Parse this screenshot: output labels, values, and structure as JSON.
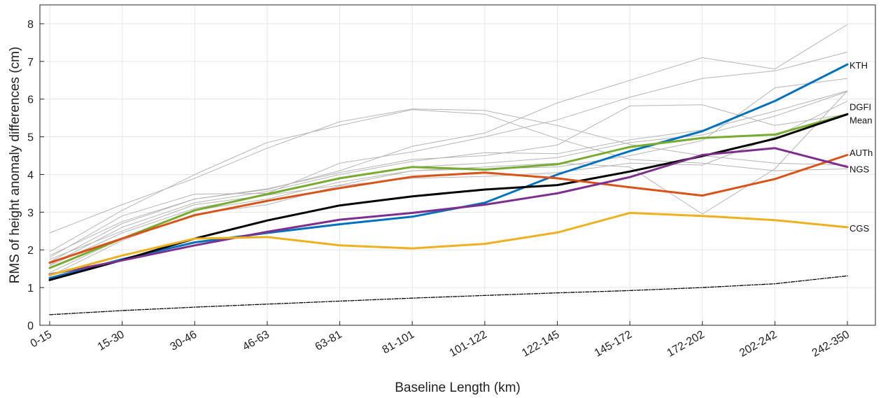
{
  "chart_data": {
    "type": "line",
    "title": "",
    "xlabel": "Baseline Length (km)",
    "ylabel": "RMS of height anomaly differences (cm)",
    "categories": [
      "0-15",
      "15-30",
      "30-46",
      "46-63",
      "63-81",
      "81-101",
      "101-122",
      "122-145",
      "145-172",
      "172-202",
      "202-242",
      "242-350"
    ],
    "ylim": [
      0,
      8.5
    ],
    "yticks": [
      0,
      1,
      2,
      3,
      4,
      5,
      6,
      7,
      8
    ],
    "grid": true,
    "legend": "none",
    "series": [
      {
        "name": "KTH",
        "color": "#0072BD",
        "width": 3,
        "values": [
          1.25,
          1.75,
          2.2,
          2.45,
          2.68,
          2.88,
          3.25,
          4.0,
          4.62,
          5.15,
          5.95,
          6.92
        ]
      },
      {
        "name": "DGFI",
        "color": "#77AC30",
        "width": 3,
        "values": [
          1.52,
          2.3,
          3.05,
          3.48,
          3.9,
          4.2,
          4.13,
          4.27,
          4.73,
          4.97,
          5.06,
          5.6
        ]
      },
      {
        "name": "Mean",
        "color": "#000000",
        "width": 3,
        "values": [
          1.2,
          1.73,
          2.3,
          2.78,
          3.18,
          3.42,
          3.6,
          3.72,
          4.08,
          4.49,
          4.95,
          5.6
        ]
      },
      {
        "name": "AUTh",
        "color": "#D95319",
        "width": 3,
        "values": [
          1.66,
          2.3,
          2.92,
          3.3,
          3.64,
          3.94,
          4.05,
          3.9,
          3.66,
          3.44,
          3.88,
          4.52
        ]
      },
      {
        "name": "NGS",
        "color": "#7E2F8E",
        "width": 3,
        "values": [
          1.35,
          1.72,
          2.12,
          2.48,
          2.8,
          2.98,
          3.2,
          3.5,
          3.93,
          4.52,
          4.7,
          4.2
        ]
      },
      {
        "name": "CGS",
        "color": "#EDB120",
        "width": 3,
        "values": [
          1.33,
          1.85,
          2.3,
          2.34,
          2.12,
          2.04,
          2.16,
          2.46,
          2.98,
          2.9,
          2.79,
          2.6
        ]
      },
      {
        "name": "",
        "color": "#000000",
        "width": 1.3,
        "dashed": true,
        "values": [
          0.28,
          0.39,
          0.48,
          0.56,
          0.64,
          0.72,
          0.79,
          0.86,
          0.92,
          1.0,
          1.1,
          1.31
        ]
      }
    ],
    "background_series": {
      "color": "#b5b5b5",
      "width": 1,
      "lines": [
        [
          2.45,
          3.2,
          3.9,
          4.7,
          5.4,
          5.74,
          5.7,
          5.3,
          4.8,
          4.5,
          4.3,
          4.25
        ],
        [
          1.95,
          3.05,
          4.0,
          4.85,
          5.3,
          5.72,
          5.6,
          4.95,
          4.4,
          4.3,
          4.1,
          4.15
        ],
        [
          1.8,
          2.9,
          3.48,
          3.5,
          4.3,
          4.6,
          5.0,
          5.45,
          6.05,
          6.55,
          6.75,
          7.25
        ],
        [
          1.85,
          2.75,
          3.35,
          3.6,
          4.1,
          4.75,
          5.1,
          5.9,
          6.5,
          7.1,
          6.8,
          7.98
        ],
        [
          1.68,
          2.7,
          3.35,
          3.62,
          4.05,
          4.4,
          4.5,
          4.78,
          5.82,
          5.85,
          5.3,
          5.6
        ],
        [
          1.6,
          2.6,
          3.25,
          3.55,
          4.0,
          4.35,
          4.58,
          4.55,
          4.92,
          5.18,
          5.68,
          6.22
        ],
        [
          1.58,
          2.45,
          3.1,
          3.45,
          3.92,
          4.2,
          4.3,
          4.45,
          4.85,
          5.05,
          5.55,
          6.2
        ],
        [
          1.4,
          2.3,
          3.05,
          3.35,
          3.8,
          4.1,
          4.15,
          4.2,
          4.5,
          4.9,
          6.3,
          6.55
        ],
        [
          1.3,
          2.25,
          2.95,
          3.2,
          3.7,
          3.9,
          3.95,
          4.05,
          4.3,
          4.25,
          5.0,
          5.95
        ],
        [
          1.75,
          2.5,
          3.2,
          3.45,
          3.72,
          4.1,
          4.2,
          4.3,
          4.2,
          2.95,
          4.15,
          6.22
        ]
      ]
    },
    "series_labels": [
      {
        "text": "KTH",
        "value": 6.9
      },
      {
        "text": "DGFI",
        "value": 5.8
      },
      {
        "text": "Mean",
        "value": 5.45
      },
      {
        "text": "AUTh",
        "value": 4.58
      },
      {
        "text": "NGS",
        "value": 4.15
      },
      {
        "text": "CGS",
        "value": 2.58
      }
    ]
  }
}
